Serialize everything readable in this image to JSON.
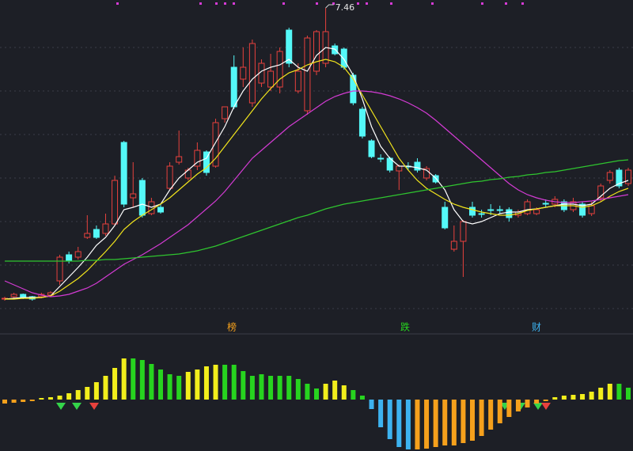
{
  "chart_data": {
    "type": "candlestick",
    "ylim": [
      3.56,
      7.56
    ],
    "open": [
      3.78,
      3.81,
      3.84,
      3.81,
      3.81,
      3.83,
      4.01,
      4.34,
      4.31,
      4.56,
      4.66,
      4.61,
      4.73,
      5.76,
      5.06,
      5.28,
      4.86,
      4.94,
      5.18,
      5.51,
      5.31,
      5.46,
      5.64,
      5.46,
      6.06,
      6.71,
      6.56,
      6.26,
      6.51,
      6.46,
      6.46,
      7.18,
      6.41,
      6.16,
      6.66,
      6.76,
      6.98,
      6.94,
      6.61,
      6.18,
      5.78,
      5.56,
      5.56,
      5.4,
      5.46,
      5.51,
      5.31,
      5.34,
      4.94,
      4.41,
      4.51,
      4.94,
      4.86,
      4.91,
      4.91,
      4.91,
      4.84,
      4.86,
      4.86,
      4.99,
      4.98,
      5.01,
      4.91,
      4.98,
      4.86,
      5.06,
      5.28,
      5.41,
      5.24
    ],
    "close": [
      3.79,
      3.84,
      3.8,
      3.78,
      3.84,
      3.86,
      4.31,
      4.26,
      4.38,
      4.61,
      4.56,
      4.73,
      5.28,
      4.98,
      5.11,
      4.84,
      5.01,
      4.88,
      5.46,
      5.58,
      5.41,
      5.66,
      5.38,
      6.01,
      6.21,
      6.21,
      6.71,
      7.01,
      6.76,
      6.66,
      6.91,
      6.76,
      6.66,
      7.08,
      7.16,
      7.16,
      6.88,
      6.71,
      6.26,
      5.84,
      5.58,
      5.55,
      5.41,
      5.46,
      5.45,
      5.41,
      5.43,
      5.26,
      4.68,
      4.51,
      4.76,
      4.84,
      4.85,
      4.9,
      4.9,
      4.81,
      4.88,
      5.01,
      4.91,
      4.98,
      5.04,
      4.91,
      5.01,
      4.84,
      4.96,
      5.21,
      5.38,
      5.21,
      5.41
    ],
    "high": [
      3.81,
      3.86,
      3.85,
      3.82,
      3.86,
      3.88,
      4.34,
      4.38,
      4.44,
      4.84,
      4.71,
      4.86,
      5.34,
      5.78,
      5.51,
      5.31,
      5.06,
      4.98,
      5.51,
      5.91,
      5.44,
      5.76,
      5.66,
      6.06,
      6.21,
      6.86,
      6.96,
      7.06,
      6.81,
      6.88,
      6.96,
      7.21,
      6.76,
      7.11,
      7.18,
      7.46,
      7.01,
      6.96,
      6.64,
      6.21,
      5.8,
      5.61,
      5.58,
      5.48,
      5.51,
      5.56,
      5.46,
      5.36,
      5.01,
      4.71,
      4.78,
      5.01,
      4.91,
      4.98,
      4.96,
      4.94,
      4.91,
      5.04,
      4.94,
      5.04,
      5.08,
      5.04,
      5.06,
      5.01,
      5.01,
      5.24,
      5.41,
      5.44,
      5.44
    ],
    "low": [
      3.76,
      3.78,
      3.78,
      3.76,
      3.79,
      3.81,
      3.96,
      4.23,
      4.28,
      4.54,
      4.54,
      4.58,
      4.71,
      4.94,
      4.94,
      4.81,
      4.84,
      4.86,
      5.16,
      5.48,
      5.28,
      5.41,
      5.34,
      5.44,
      6.01,
      6.18,
      6.46,
      6.21,
      6.46,
      6.41,
      6.38,
      6.71,
      6.38,
      6.11,
      6.61,
      6.71,
      6.86,
      6.68,
      6.23,
      5.81,
      5.56,
      5.51,
      5.38,
      5.16,
      5.41,
      5.38,
      5.28,
      5.24,
      4.66,
      4.38,
      4.06,
      4.81,
      4.81,
      4.84,
      4.86,
      4.76,
      4.81,
      4.84,
      4.84,
      4.94,
      4.94,
      4.88,
      4.88,
      4.81,
      4.83,
      5.01,
      5.24,
      5.18,
      5.21
    ],
    "up_color": "#e8413d",
    "down_color": "#54f8f8",
    "series": [
      {
        "color": "#ffffff",
        "values": [
          3.78,
          3.79,
          3.8,
          3.8,
          3.8,
          3.82,
          3.94,
          4.06,
          4.18,
          4.31,
          4.46,
          4.56,
          4.71,
          4.91,
          4.94,
          4.98,
          4.94,
          4.98,
          5.16,
          5.31,
          5.41,
          5.51,
          5.56,
          5.76,
          5.96,
          6.21,
          6.41,
          6.56,
          6.66,
          6.71,
          6.74,
          6.81,
          6.71,
          6.66,
          6.86,
          6.96,
          6.94,
          6.81,
          6.61,
          6.31,
          5.96,
          5.71,
          5.56,
          5.46,
          5.46,
          5.44,
          5.41,
          5.31,
          5.16,
          4.91,
          4.76,
          4.73,
          4.76,
          4.81,
          4.86,
          4.88,
          4.88,
          4.91,
          4.92,
          4.94,
          4.96,
          4.98,
          4.98,
          4.96,
          4.98,
          5.08,
          5.18,
          5.24,
          5.28
        ]
      },
      {
        "color": "#f2e51c",
        "values": [
          3.78,
          3.78,
          3.79,
          3.79,
          3.8,
          3.82,
          3.88,
          3.96,
          4.04,
          4.14,
          4.26,
          4.38,
          4.51,
          4.66,
          4.76,
          4.84,
          4.91,
          4.98,
          5.06,
          5.16,
          5.26,
          5.36,
          5.44,
          5.56,
          5.71,
          5.86,
          6.01,
          6.16,
          6.31,
          6.44,
          6.56,
          6.64,
          6.68,
          6.74,
          6.78,
          6.81,
          6.78,
          6.71,
          6.56,
          6.36,
          6.16,
          5.96,
          5.76,
          5.56,
          5.41,
          5.28,
          5.18,
          5.11,
          5.04,
          4.98,
          4.94,
          4.91,
          4.88,
          4.86,
          4.84,
          4.84,
          4.86,
          4.9,
          4.92,
          4.94,
          4.96,
          4.96,
          4.96,
          4.94,
          4.96,
          5.01,
          5.08,
          5.14,
          5.18
        ]
      },
      {
        "color": "#d43bd4",
        "values": [
          4.01,
          3.96,
          3.91,
          3.86,
          3.83,
          3.81,
          3.82,
          3.84,
          3.88,
          3.92,
          3.98,
          4.06,
          4.14,
          4.22,
          4.28,
          4.34,
          4.41,
          4.48,
          4.56,
          4.64,
          4.72,
          4.82,
          4.92,
          5.02,
          5.14,
          5.28,
          5.42,
          5.56,
          5.66,
          5.76,
          5.86,
          5.96,
          6.04,
          6.12,
          6.2,
          6.28,
          6.34,
          6.38,
          6.41,
          6.41,
          6.4,
          6.38,
          6.35,
          6.31,
          6.26,
          6.2,
          6.13,
          6.04,
          5.94,
          5.84,
          5.74,
          5.64,
          5.54,
          5.44,
          5.34,
          5.24,
          5.16,
          5.1,
          5.06,
          5.03,
          5.01,
          5.0,
          5.0,
          5.01,
          5.02,
          5.04,
          5.06,
          5.08,
          5.1
        ]
      },
      {
        "color": "#2fc52f",
        "values": [
          4.26,
          4.26,
          4.26,
          4.26,
          4.26,
          4.26,
          4.26,
          4.26,
          4.26,
          4.27,
          4.27,
          4.28,
          4.28,
          4.29,
          4.3,
          4.31,
          4.32,
          4.33,
          4.34,
          4.35,
          4.37,
          4.39,
          4.42,
          4.45,
          4.49,
          4.53,
          4.57,
          4.61,
          4.65,
          4.69,
          4.73,
          4.77,
          4.81,
          4.84,
          4.88,
          4.92,
          4.95,
          4.98,
          5.0,
          5.02,
          5.04,
          5.06,
          5.08,
          5.1,
          5.12,
          5.14,
          5.16,
          5.18,
          5.2,
          5.22,
          5.24,
          5.26,
          5.27,
          5.29,
          5.3,
          5.32,
          5.33,
          5.35,
          5.36,
          5.38,
          5.39,
          5.41,
          5.43,
          5.45,
          5.47,
          5.49,
          5.51,
          5.53,
          5.54
        ]
      }
    ],
    "indicator": {
      "ylim": [
        -65,
        55
      ],
      "values": [
        -5,
        -4,
        -3,
        -2,
        2,
        3,
        5,
        8,
        12,
        16,
        22,
        30,
        40,
        52,
        52,
        50,
        45,
        38,
        32,
        30,
        35,
        38,
        42,
        44,
        44,
        44,
        36,
        30,
        32,
        30,
        30,
        30,
        26,
        20,
        14,
        20,
        24,
        18,
        12,
        5,
        -12,
        -35,
        -50,
        -60,
        -63,
        -63,
        -62,
        -60,
        -58,
        -58,
        -55,
        -52,
        -46,
        -38,
        -30,
        -22,
        -15,
        -10,
        -5,
        -2,
        3,
        5,
        6,
        7,
        10,
        15,
        20,
        20,
        15
      ],
      "colors": [
        "#f5a01c",
        "#f5a01c",
        "#f5a01c",
        "#f5a01c",
        "#f2ee1c",
        "#f2ee1c",
        "#f2ee1c",
        "#f2ee1c",
        "#f2ee1c",
        "#f2ee1c",
        "#f2ee1c",
        "#f2ee1c",
        "#f2ee1c",
        "#f2ee1c",
        "#27d41f",
        "#27d41f",
        "#27d41f",
        "#27d41f",
        "#27d41f",
        "#27d41f",
        "#f2ee1c",
        "#f2ee1c",
        "#f2ee1c",
        "#f2ee1c",
        "#27d41f",
        "#27d41f",
        "#27d41f",
        "#27d41f",
        "#27d41f",
        "#27d41f",
        "#27d41f",
        "#27d41f",
        "#27d41f",
        "#27d41f",
        "#27d41f",
        "#f2ee1c",
        "#f2ee1c",
        "#f2ee1c",
        "#27d41f",
        "#27d41f",
        "#3db3f0",
        "#3db3f0",
        "#3db3f0",
        "#3db3f0",
        "#3db3f0",
        "#f5a01c",
        "#f5a01c",
        "#f5a01c",
        "#f5a01c",
        "#f5a01c",
        "#f5a01c",
        "#f5a01c",
        "#f5a01c",
        "#f5a01c",
        "#f5a01c",
        "#f5a01c",
        "#f5a01c",
        "#f5a01c",
        "#f5a01c",
        "#f5a01c",
        "#f2ee1c",
        "#f2ee1c",
        "#f2ee1c",
        "#f2ee1c",
        "#f2ee1c",
        "#f2ee1c",
        "#f2ee1c",
        "#27d41f",
        "#27d41f"
      ]
    },
    "signals": [
      {
        "text": "榜",
        "color": "#f5a01c"
      },
      {
        "text": "跌",
        "color": "#27d41f"
      },
      {
        "text": "财",
        "color": "#3db3f0"
      }
    ]
  }
}
